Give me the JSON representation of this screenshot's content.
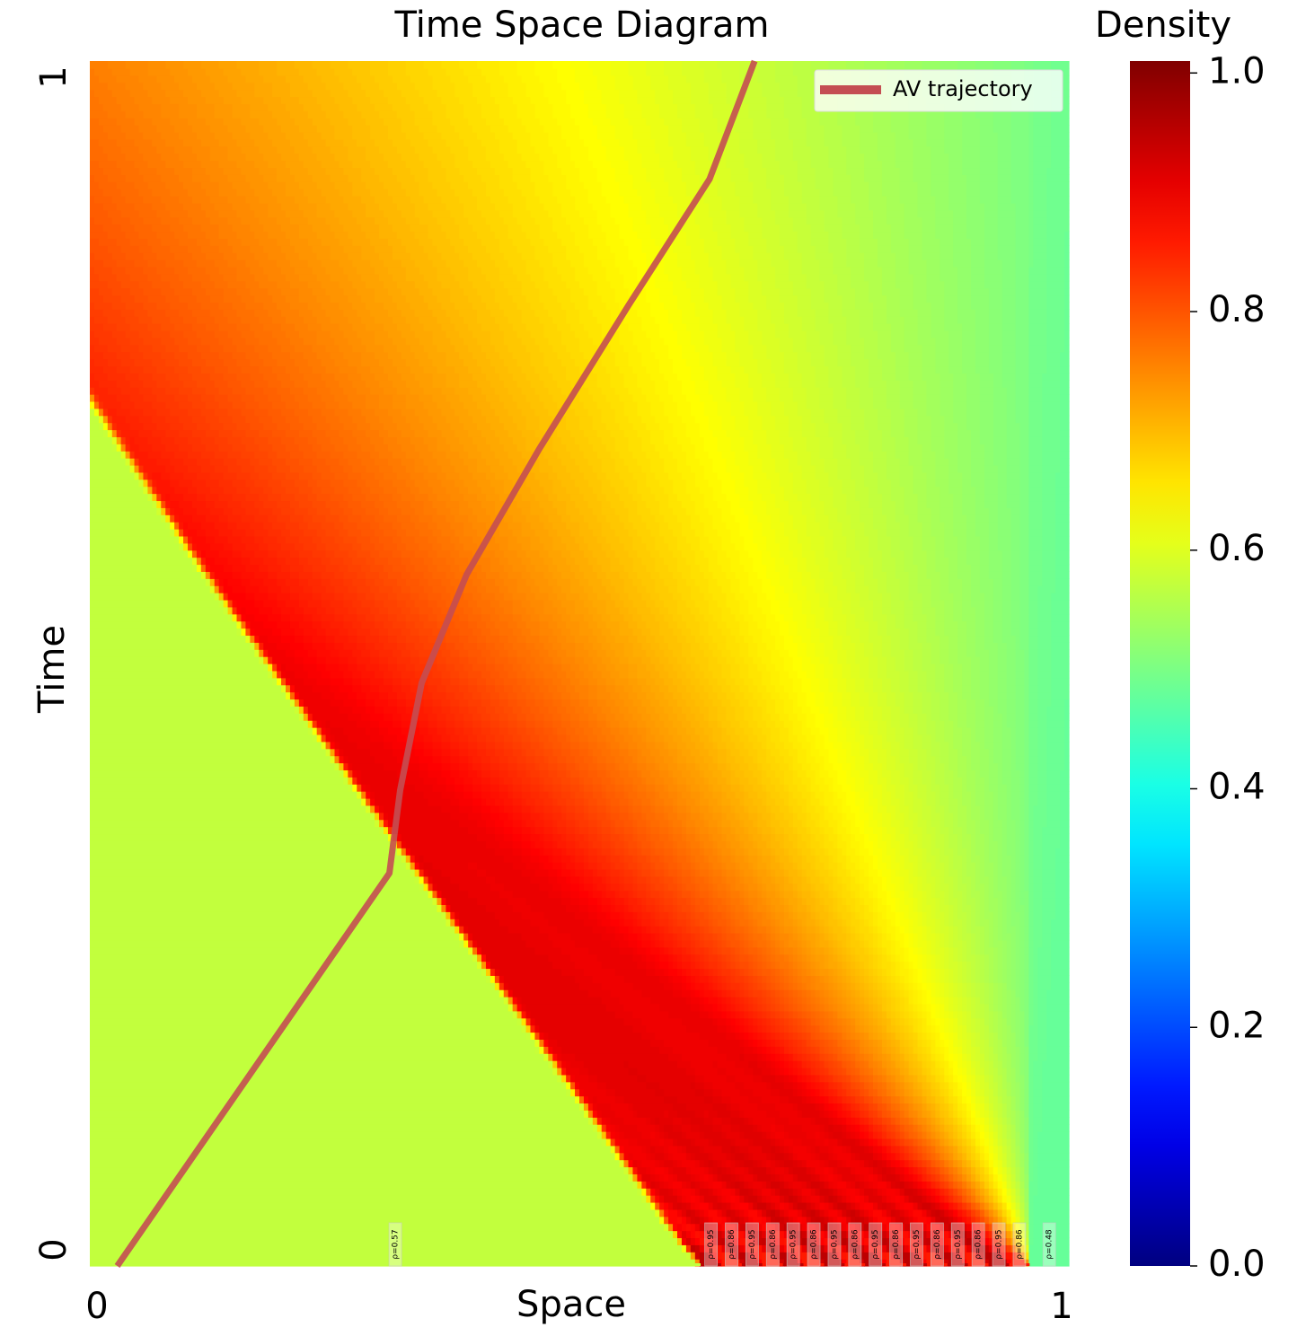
{
  "chart_data": {
    "type": "heatmap",
    "title": "Time Space Diagram",
    "xlabel": "Space",
    "ylabel": "Time",
    "xlim": [
      0,
      1
    ],
    "xticks": [
      0,
      1
    ],
    "ylim": [
      0,
      1
    ],
    "yticks": [
      0,
      1
    ],
    "colormap": "jet",
    "colorbar_title": "Density",
    "clim": [
      0,
      1.01
    ],
    "cticks": [
      {
        "value": 0,
        "label": "0.0"
      },
      0.2,
      0.4,
      0.6,
      0.8,
      {
        "value": 1,
        "label": "1.0"
      }
    ],
    "initial_condition": {
      "bins": [
        0,
        0.624,
        0.645,
        0.666,
        0.687,
        0.708,
        0.729,
        0.75,
        0.771,
        0.792,
        0.813,
        0.834,
        0.855,
        0.876,
        0.897,
        0.918,
        0.939,
        0.96,
        1
      ],
      "values": [
        0.57,
        0.95,
        0.86,
        0.95,
        0.86,
        0.95,
        0.86,
        0.95,
        0.86,
        0.95,
        0.86,
        0.95,
        0.86,
        0.95,
        0.86,
        0.95,
        0.86,
        0.48
      ],
      "value_labels": [
        "ρ=0.57",
        "ρ=0.95",
        "ρ=0.86",
        "ρ=0.95",
        "ρ=0.86",
        "ρ=0.95",
        "ρ=0.86",
        "ρ=0.95",
        "ρ=0.86",
        "ρ=0.95",
        "ρ=0.86",
        "ρ=0.95",
        "ρ=0.86",
        "ρ=0.95",
        "ρ=0.86",
        "ρ=0.95",
        "ρ=0.86",
        "ρ=0.48"
      ]
    },
    "series": [
      {
        "name": "AV trajectory",
        "color": "#c44e52",
        "x": [
          0.028,
          0.306,
          0.317,
          0.339,
          0.385,
          0.459,
          0.55,
          0.633,
          0.679
        ],
        "y": [
          0,
          0.326,
          0.395,
          0.484,
          0.574,
          0.678,
          0.797,
          0.902,
          1.0
        ]
      }
    ],
    "legend": "upper right"
  }
}
